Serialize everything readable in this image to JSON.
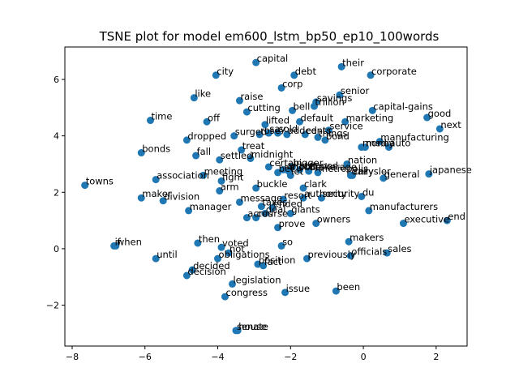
{
  "chart_data": {
    "type": "scatter",
    "title": "TSNE plot for model em600_lstm_bp50_ep10_100words",
    "xlabel": "",
    "ylabel": "",
    "xlim": [
      -8.2,
      2.85
    ],
    "ylim": [
      -3.45,
      7.15
    ],
    "xticks": [
      -8,
      -6,
      -4,
      -2,
      0,
      2
    ],
    "yticks": [
      -2,
      0,
      2,
      4,
      6
    ],
    "grid": false,
    "point_color": "#1f77b4",
    "points": [
      {
        "label": "capital",
        "x": -2.95,
        "y": 6.6
      },
      {
        "label": "their",
        "x": -0.6,
        "y": 6.45
      },
      {
        "label": "city",
        "x": -4.05,
        "y": 6.15
      },
      {
        "label": "debt",
        "x": -1.9,
        "y": 6.15
      },
      {
        "label": "corporate",
        "x": 0.2,
        "y": 6.15
      },
      {
        "label": "corp",
        "x": -2.25,
        "y": 5.7
      },
      {
        "label": "like",
        "x": -4.65,
        "y": 5.35
      },
      {
        "label": "senior",
        "x": -0.65,
        "y": 5.45
      },
      {
        "label": "raise",
        "x": -3.4,
        "y": 5.25
      },
      {
        "label": "savings",
        "x": -1.3,
        "y": 5.2
      },
      {
        "label": "trillion",
        "x": -1.35,
        "y": 5.05
      },
      {
        "label": "cutting",
        "x": -3.2,
        "y": 4.85
      },
      {
        "label": "bell",
        "x": -1.95,
        "y": 4.9
      },
      {
        "label": "capital-gains",
        "x": 0.25,
        "y": 4.9
      },
      {
        "label": "good",
        "x": 1.75,
        "y": 4.65
      },
      {
        "label": "time",
        "x": -5.85,
        "y": 4.55
      },
      {
        "label": "off",
        "x": -4.3,
        "y": 4.5
      },
      {
        "label": "default",
        "x": -1.75,
        "y": 4.5
      },
      {
        "label": "marketing",
        "x": -0.5,
        "y": 4.5
      },
      {
        "label": "lifted",
        "x": -2.7,
        "y": 4.4
      },
      {
        "label": "next",
        "x": 2.1,
        "y": 4.25
      },
      {
        "label": "service",
        "x": -0.95,
        "y": 4.2
      },
      {
        "label": "cents",
        "x": -1.6,
        "y": 4.05
      },
      {
        "label": "dropped",
        "x": -4.85,
        "y": 3.85
      },
      {
        "label": "surged",
        "x": -3.55,
        "y": 4.0
      },
      {
        "label": "rose",
        "x": -2.85,
        "y": 4.05
      },
      {
        "label": "say",
        "x": -2.6,
        "y": 4.1
      },
      {
        "label": "sold",
        "x": -2.35,
        "y": 4.1
      },
      {
        "label": "added",
        "x": -2.1,
        "y": 4.05
      },
      {
        "label": "things",
        "x": -1.25,
        "y": 3.95
      },
      {
        "label": "bond",
        "x": -1.05,
        "y": 3.85
      },
      {
        "label": "manufacturing",
        "x": 0.45,
        "y": 3.8
      },
      {
        "label": "money",
        "x": -0.05,
        "y": 3.6
      },
      {
        "label": "media",
        "x": 0.05,
        "y": 3.6
      },
      {
        "label": "auto",
        "x": 0.7,
        "y": 3.6
      },
      {
        "label": "bonds",
        "x": -6.1,
        "y": 3.4
      },
      {
        "label": "treat",
        "x": -3.35,
        "y": 3.5
      },
      {
        "label": "fall",
        "x": -4.6,
        "y": 3.3
      },
      {
        "label": "settled",
        "x": -3.95,
        "y": 3.15
      },
      {
        "label": "midnight",
        "x": -3.1,
        "y": 3.2
      },
      {
        "label": "nation",
        "x": -0.45,
        "y": 3.0
      },
      {
        "label": "certain",
        "x": -2.6,
        "y": 2.9
      },
      {
        "label": "bigger",
        "x": -1.95,
        "y": 2.9
      },
      {
        "label": "largest",
        "x": -2.2,
        "y": 2.8
      },
      {
        "label": "mobile",
        "x": -2.05,
        "y": 2.75
      },
      {
        "label": "brokerage",
        "x": -1.5,
        "y": 2.75
      },
      {
        "label": "stepped",
        "x": -1.75,
        "y": 2.8
      },
      {
        "label": "metropolis",
        "x": -1.25,
        "y": 2.7
      },
      {
        "label": "bet",
        "x": -2.35,
        "y": 2.7
      },
      {
        "label": "let",
        "x": -2.0,
        "y": 2.6
      },
      {
        "label": "chrysler",
        "x": -0.3,
        "y": 2.6
      },
      {
        "label": "daily",
        "x": -0.35,
        "y": 2.6
      },
      {
        "label": "general",
        "x": 0.55,
        "y": 2.5
      },
      {
        "label": "japanese",
        "x": 1.8,
        "y": 2.65
      },
      {
        "label": "meeting",
        "x": -4.4,
        "y": 2.6
      },
      {
        "label": "association",
        "x": -5.7,
        "y": 2.45
      },
      {
        "label": "fight",
        "x": -3.9,
        "y": 2.4
      },
      {
        "label": "towns",
        "x": -7.65,
        "y": 2.25
      },
      {
        "label": "arm",
        "x": -3.95,
        "y": 2.05
      },
      {
        "label": "buckle",
        "x": -2.95,
        "y": 2.15
      },
      {
        "label": "clark",
        "x": -1.65,
        "y": 2.15
      },
      {
        "label": "du",
        "x": -0.05,
        "y": 1.85
      },
      {
        "label": "maker",
        "x": -6.1,
        "y": 1.8
      },
      {
        "label": "division",
        "x": -5.5,
        "y": 1.7
      },
      {
        "label": "message",
        "x": -3.4,
        "y": 1.65
      },
      {
        "label": "resort",
        "x": -2.2,
        "y": 1.75
      },
      {
        "label": "authority",
        "x": -1.65,
        "y": 1.8
      },
      {
        "label": "security",
        "x": -1.15,
        "y": 1.8
      },
      {
        "label": "taxes",
        "x": -2.8,
        "y": 1.5
      },
      {
        "label": "ended",
        "x": -2.5,
        "y": 1.45
      },
      {
        "label": "manager",
        "x": -4.8,
        "y": 1.35
      },
      {
        "label": "acres",
        "x": -3.2,
        "y": 1.1
      },
      {
        "label": "deal",
        "x": -2.7,
        "y": 1.25
      },
      {
        "label": "giants",
        "x": -2.0,
        "y": 1.25
      },
      {
        "label": "course",
        "x": -2.95,
        "y": 1.1
      },
      {
        "label": "manufacturers",
        "x": 0.15,
        "y": 1.35
      },
      {
        "label": "owners",
        "x": -1.3,
        "y": 0.9
      },
      {
        "label": "executive",
        "x": 1.1,
        "y": 0.9
      },
      {
        "label": "end",
        "x": 2.3,
        "y": 1.0
      },
      {
        "label": "prove",
        "x": -2.35,
        "y": 0.75
      },
      {
        "label": "if",
        "x": -6.85,
        "y": 0.1
      },
      {
        "label": "when",
        "x": -6.8,
        "y": 0.1
      },
      {
        "label": "then",
        "x": -4.55,
        "y": 0.2
      },
      {
        "label": "voted",
        "x": -3.9,
        "y": 0.05
      },
      {
        "label": "so",
        "x": -2.25,
        "y": 0.1
      },
      {
        "label": "makers",
        "x": -0.4,
        "y": 0.25
      },
      {
        "label": "not",
        "x": -3.7,
        "y": -0.15
      },
      {
        "label": "sales",
        "x": 0.65,
        "y": -0.15
      },
      {
        "label": "officials",
        "x": -0.35,
        "y": -0.25
      },
      {
        "label": "until",
        "x": -5.7,
        "y": -0.35
      },
      {
        "label": "obligations",
        "x": -4.0,
        "y": -0.35
      },
      {
        "label": "previously",
        "x": -1.55,
        "y": -0.35
      },
      {
        "label": "position",
        "x": -2.9,
        "y": -0.55
      },
      {
        "label": "fact",
        "x": -2.75,
        "y": -0.6
      },
      {
        "label": "decided",
        "x": -4.7,
        "y": -0.75
      },
      {
        "label": "decision",
        "x": -4.85,
        "y": -0.95
      },
      {
        "label": "legislation",
        "x": -3.6,
        "y": -1.25
      },
      {
        "label": "issue",
        "x": -2.15,
        "y": -1.55
      },
      {
        "label": "been",
        "x": -0.75,
        "y": -1.5
      },
      {
        "label": "congress",
        "x": -3.8,
        "y": -1.7
      },
      {
        "label": "senate",
        "x": -3.5,
        "y": -2.9
      },
      {
        "label": "house",
        "x": -3.45,
        "y": -2.9
      }
    ]
  }
}
